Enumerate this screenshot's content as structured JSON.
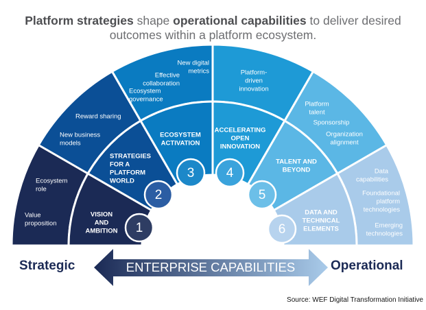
{
  "title": {
    "line1_bold1": "Platform strategies",
    "line1_mid": " shape ",
    "line1_bold2": "operational capabilities",
    "line1_end": " to deliver desired",
    "line2": "outcomes within a platform ecosystem."
  },
  "colors": {
    "segments": [
      "#1b2a55",
      "#0b4f96",
      "#0a7bc1",
      "#1e9ad6",
      "#5bb7e5",
      "#a9cbea"
    ],
    "circles": [
      "#2e3d63",
      "#2b5da3",
      "#1c88c9",
      "#3aa3dc",
      "#6cbfe8",
      "#b7d3ee"
    ],
    "arrow_start": "#1b2a55",
    "arrow_end": "#a9cbea"
  },
  "segments": [
    {
      "number": "1",
      "name": [
        "VISION",
        "AND",
        "AMBITION"
      ],
      "outer": [
        [
          "Ecosystem",
          "role"
        ],
        [
          "Value",
          "proposition"
        ]
      ]
    },
    {
      "number": "2",
      "name": [
        "STRATEGIES",
        "FOR A",
        "PLATFORM",
        "WORLD"
      ],
      "outer": [
        [
          "Reward sharing"
        ],
        [
          "New business",
          "models"
        ]
      ]
    },
    {
      "number": "3",
      "name": [
        "ECOSYSTEM",
        "ACTIVATION"
      ],
      "outer": [
        [
          "New digital",
          "metrics"
        ],
        [
          "Effective",
          "collaboration"
        ],
        [
          "Ecosystem",
          "governance"
        ]
      ]
    },
    {
      "number": "4",
      "name": [
        "ACCELERATING",
        "OPEN",
        "INNOVATION"
      ],
      "outer": [
        [
          "Platform-",
          "driven",
          "innovation"
        ]
      ]
    },
    {
      "number": "5",
      "name": [
        "TALENT  AND",
        "BEYOND"
      ],
      "outer": [
        [
          "Platform",
          "talent"
        ],
        [
          "Sponsorship"
        ],
        [
          "Organization",
          "alignment"
        ]
      ]
    },
    {
      "number": "6",
      "name": [
        "DATA AND",
        "TECHNICAL",
        "ELEMENTS"
      ],
      "outer": [
        [
          "Data",
          "capabilities"
        ],
        [
          "Foundational",
          "platform",
          "technologies"
        ],
        [
          "Emerging",
          "technologies"
        ]
      ]
    }
  ],
  "arrow": {
    "label": "ENTERPRISE CAPABILITIES"
  },
  "left_label": "Strategic",
  "right_label": "Operational",
  "source": "Source: WEF Digital Transformation Initiative"
}
